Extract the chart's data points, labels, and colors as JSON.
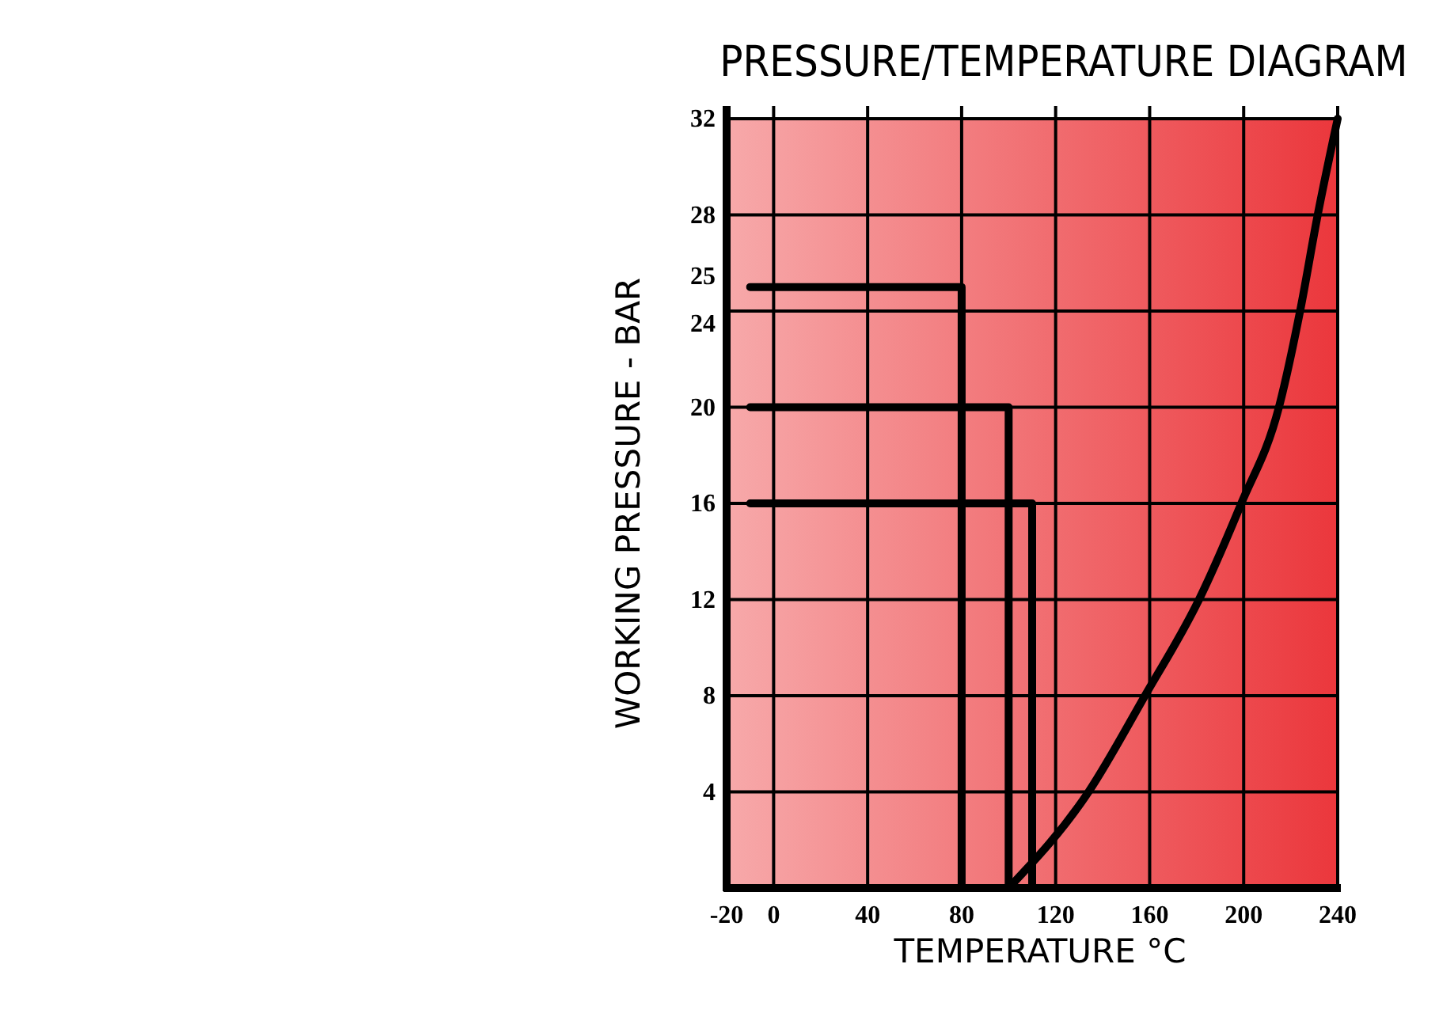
{
  "chart_data": {
    "type": "line",
    "title": "PRESSURE/TEMPERATURE DIAGRAM",
    "xlabel": "TEMPERATURE °C",
    "ylabel": "WORKING PRESSURE - BAR",
    "xlim": [
      -20,
      240
    ],
    "xticks": [
      -20,
      0,
      40,
      80,
      120,
      160,
      200,
      240
    ],
    "ylim": [
      0,
      32
    ],
    "yticks": [
      4,
      8,
      12,
      16,
      20,
      24,
      {
        "value": 25,
        "label": "25"
      },
      28,
      32
    ],
    "grid": true,
    "marker": "none",
    "line_style": "solid",
    "series": [
      {
        "color": "#000000",
        "x": [
          -10,
          80,
          80
        ],
        "values": [
          25,
          25,
          0
        ]
      },
      {
        "color": "#000000",
        "x": [
          -10,
          100,
          100
        ],
        "values": [
          20,
          20,
          0
        ]
      },
      {
        "color": "#000000",
        "x": [
          -10,
          110,
          110
        ],
        "values": [
          16,
          16,
          0
        ]
      },
      {
        "color": "#000000",
        "x": [
          100,
          134,
          158,
          181,
          199,
          215,
          224,
          231.5,
          240
        ],
        "values": [
          0,
          4,
          8,
          12,
          16,
          20,
          24,
          28,
          32
        ]
      }
    ]
  }
}
